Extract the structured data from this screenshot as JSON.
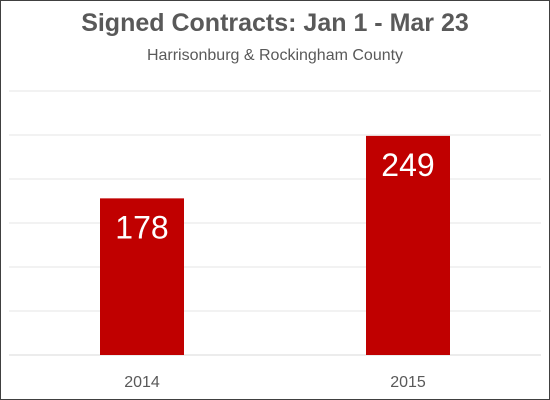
{
  "chart_data": {
    "type": "bar",
    "title": "Signed Contracts: Jan 1 - Mar 23",
    "subtitle": "Harrisonburg & Rockingham County",
    "categories": [
      "2014",
      "2015"
    ],
    "values": [
      178,
      249
    ],
    "xlabel": "",
    "ylabel": "",
    "ylim": [
      0,
      300
    ],
    "grid": true,
    "data_labels": true,
    "legend": "none",
    "bar_color": "#C00000",
    "label_color": "#FFFFFF",
    "grid_color": "#E6E6E6"
  }
}
